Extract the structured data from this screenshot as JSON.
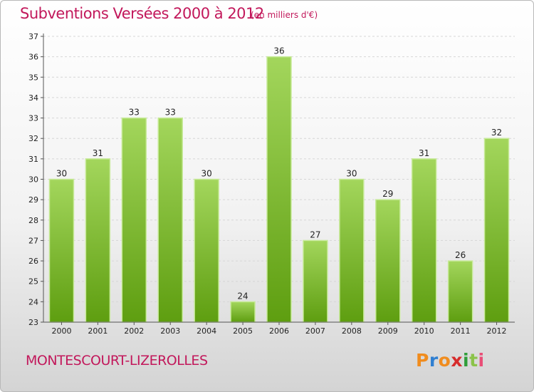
{
  "header": {
    "title": "Subventions Versées 2000 à 2012",
    "subtitle": "(en milliers d'€)"
  },
  "footer": {
    "city": "MONTESCOURT-LIZEROLLES",
    "logo": "Proxiti"
  },
  "colors": {
    "title": "#c2185b",
    "bar_light": "#a3d65c",
    "bar_dark": "#5e9e10",
    "logo_letters": [
      "#f08c1e",
      "#2f7fd1",
      "#f08c1e",
      "#d62c2c",
      "#2f9e3a",
      "#8bc34a",
      "#e94e77"
    ]
  },
  "chart_data": {
    "type": "bar",
    "categories": [
      "2000",
      "2001",
      "2002",
      "2003",
      "2004",
      "2005",
      "2006",
      "2007",
      "2008",
      "2009",
      "2010",
      "2011",
      "2012"
    ],
    "values": [
      30,
      31,
      33,
      33,
      30,
      24,
      36,
      27,
      30,
      29,
      31,
      26,
      32
    ],
    "ylim": [
      23,
      37
    ],
    "yticks": [
      23,
      24,
      25,
      26,
      27,
      28,
      29,
      30,
      31,
      32,
      33,
      34,
      35,
      36,
      37
    ],
    "grid": true,
    "title": "Subventions Versées 2000 à 2012",
    "xlabel": "",
    "ylabel": ""
  }
}
